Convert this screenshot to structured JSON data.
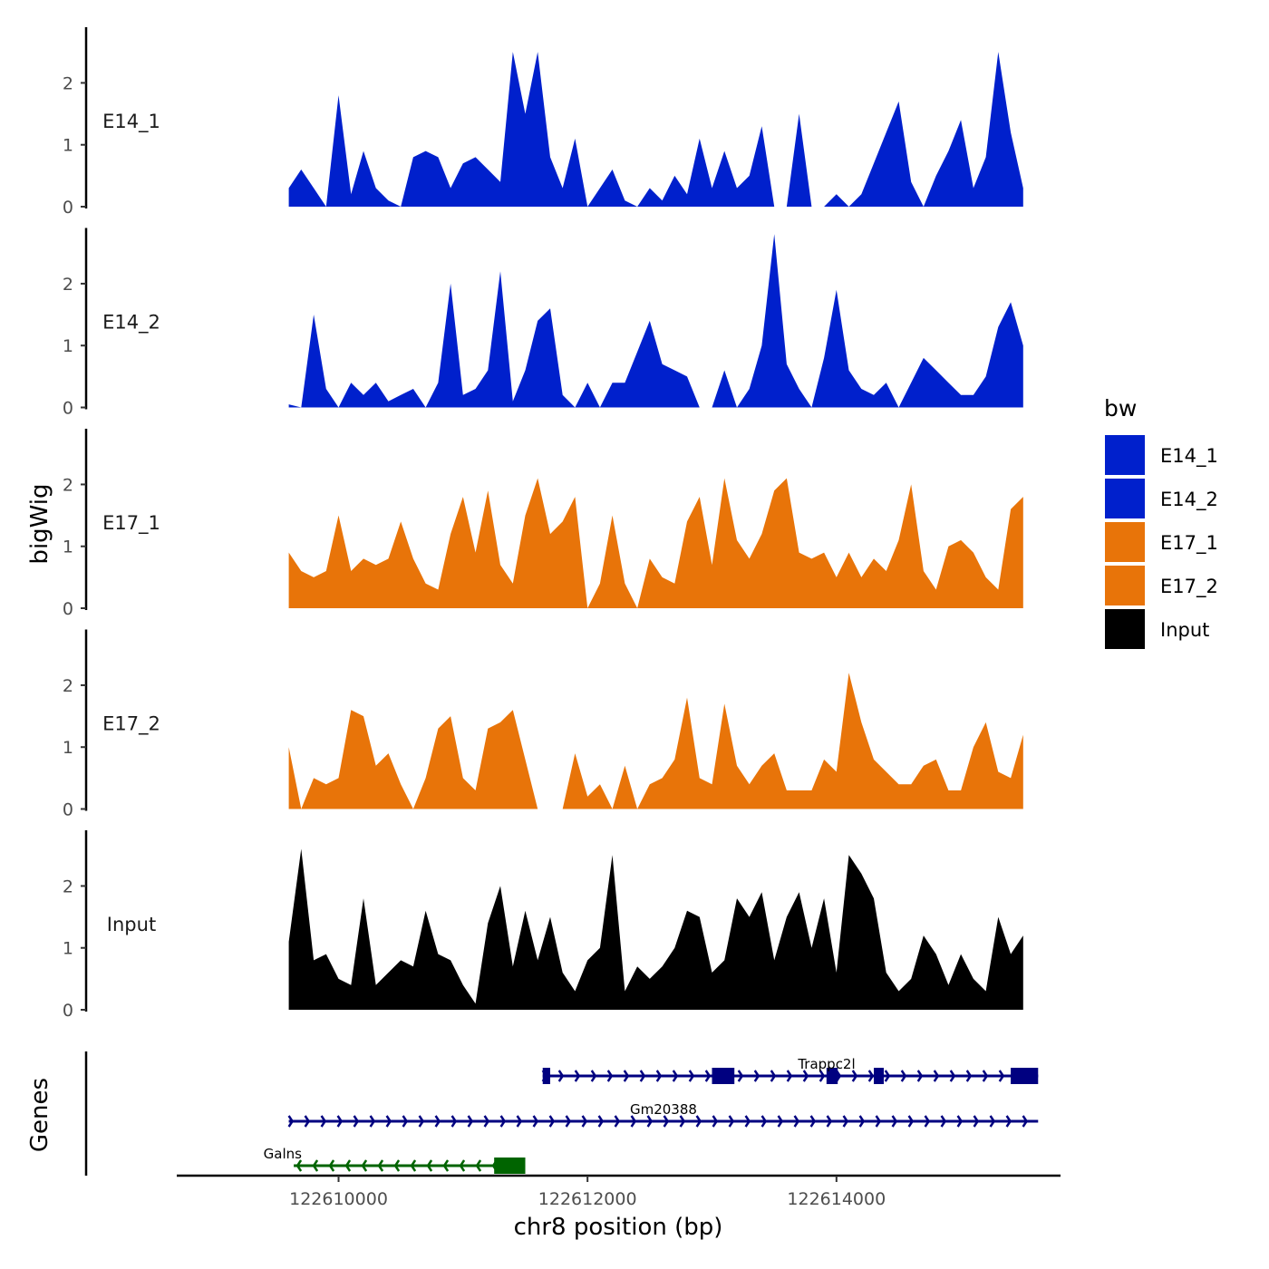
{
  "chart_data": {
    "type": "area",
    "title": "",
    "xlabel": "chr8 position (bp)",
    "ylabel": "bigWig",
    "genes_label": "Genes",
    "xlim": [
      122608700,
      122615800
    ],
    "ylim": [
      0,
      2.9
    ],
    "x_ticks": [
      122610000,
      122612000,
      122614000
    ],
    "x_tick_labels": [
      "122610000",
      "122612000",
      "122614000"
    ],
    "y_ticks": [
      0,
      1,
      2
    ],
    "y_tick_labels": [
      "0",
      "1",
      "2"
    ],
    "legend": {
      "title": "bw",
      "position": "right",
      "entries": [
        {
          "label": "E14_1",
          "color": "#0020cc"
        },
        {
          "label": "E14_2",
          "color": "#0020cc"
        },
        {
          "label": "E17_1",
          "color": "#e87409"
        },
        {
          "label": "E17_2",
          "color": "#e87409"
        },
        {
          "label": "Input",
          "color": "#000000"
        }
      ]
    },
    "x": [
      122609600,
      122609700,
      122609800,
      122609900,
      122610000,
      122610100,
      122610200,
      122610300,
      122610400,
      122610500,
      122610600,
      122610700,
      122610800,
      122610900,
      122611000,
      122611100,
      122611200,
      122611300,
      122611400,
      122611500,
      122611600,
      122611700,
      122611800,
      122611900,
      122612000,
      122612100,
      122612200,
      122612300,
      122612400,
      122612500,
      122612600,
      122612700,
      122612800,
      122612900,
      122613000,
      122613100,
      122613200,
      122613300,
      122613400,
      122613500,
      122613600,
      122613700,
      122613800,
      122613900,
      122614000,
      122614100,
      122614200,
      122614300,
      122614400,
      122614500,
      122614600,
      122614700,
      122614800,
      122614900,
      122615000,
      122615100,
      122615200,
      122615300,
      122615400,
      122615500
    ],
    "series": [
      {
        "name": "E14_1",
        "color": "#0020cc",
        "values": [
          0.3,
          0.6,
          0.3,
          0,
          1.8,
          0.2,
          0.9,
          0.3,
          0.1,
          0,
          0.8,
          0.9,
          0.8,
          0.3,
          0.7,
          0.8,
          0.6,
          0.4,
          2.5,
          1.5,
          2.5,
          0.8,
          0.3,
          1.1,
          0,
          0.3,
          0.6,
          0.1,
          0,
          0.3,
          0.1,
          0.5,
          0.2,
          1.1,
          0.3,
          0.9,
          0.3,
          0.5,
          1.3,
          0,
          0,
          1.5,
          0,
          0,
          0.2,
          0,
          0.2,
          0.7,
          1.2,
          1.7,
          0.4,
          0,
          0.5,
          0.9,
          1.4,
          0.3,
          0.8,
          2.5,
          1.2,
          0.3
        ]
      },
      {
        "name": "E14_2",
        "color": "#0020cc",
        "values": [
          0.05,
          0,
          1.5,
          0.3,
          0,
          0.4,
          0.2,
          0.4,
          0.1,
          0.2,
          0.3,
          0,
          0.4,
          2.0,
          0.2,
          0.3,
          0.6,
          2.2,
          0.1,
          0.6,
          1.4,
          1.6,
          0.2,
          0,
          0.4,
          0,
          0.4,
          0.4,
          0.9,
          1.4,
          0.7,
          0.6,
          0.5,
          0,
          0,
          0.6,
          0,
          0.3,
          1.0,
          2.8,
          0.7,
          0.3,
          0,
          0.8,
          1.9,
          0.6,
          0.3,
          0.2,
          0.4,
          0,
          0.4,
          0.8,
          0.6,
          0.4,
          0.2,
          0.2,
          0.5,
          1.3,
          1.7,
          1.0
        ]
      },
      {
        "name": "E17_1",
        "color": "#e87409",
        "values": [
          0.9,
          0.6,
          0.5,
          0.6,
          1.5,
          0.6,
          0.8,
          0.7,
          0.8,
          1.4,
          0.8,
          0.4,
          0.3,
          1.2,
          1.8,
          0.9,
          1.9,
          0.7,
          0.4,
          1.5,
          2.1,
          1.2,
          1.4,
          1.8,
          0,
          0.4,
          1.5,
          0.4,
          0,
          0.8,
          0.5,
          0.4,
          1.4,
          1.8,
          0.7,
          2.1,
          1.1,
          0.8,
          1.2,
          1.9,
          2.1,
          0.9,
          0.8,
          0.9,
          0.5,
          0.9,
          0.5,
          0.8,
          0.6,
          1.1,
          2.0,
          0.6,
          0.3,
          1.0,
          1.1,
          0.9,
          0.5,
          0.3,
          1.6,
          1.8
        ]
      },
      {
        "name": "E17_2",
        "color": "#e87409",
        "values": [
          1.0,
          0,
          0.5,
          0.4,
          0.5,
          1.6,
          1.5,
          0.7,
          0.9,
          0.4,
          0,
          0.5,
          1.3,
          1.5,
          0.5,
          0.3,
          1.3,
          1.4,
          1.6,
          0.8,
          0,
          0,
          0,
          0.9,
          0.2,
          0.4,
          0,
          0.7,
          0,
          0.4,
          0.5,
          0.8,
          1.8,
          0.5,
          0.4,
          1.7,
          0.7,
          0.4,
          0.7,
          0.9,
          0.3,
          0.3,
          0.3,
          0.8,
          0.6,
          2.2,
          1.4,
          0.8,
          0.6,
          0.4,
          0.4,
          0.7,
          0.8,
          0.3,
          0.3,
          1.0,
          1.4,
          0.6,
          0.5,
          1.2
        ]
      },
      {
        "name": "Input",
        "color": "#000000",
        "values": [
          1.1,
          2.6,
          0.8,
          0.9,
          0.5,
          0.4,
          1.8,
          0.4,
          0.6,
          0.8,
          0.7,
          1.6,
          0.9,
          0.8,
          0.4,
          0.1,
          1.4,
          2.0,
          0.7,
          1.6,
          0.8,
          1.5,
          0.6,
          0.3,
          0.8,
          1.0,
          2.5,
          0.3,
          0.7,
          0.5,
          0.7,
          1.0,
          1.6,
          1.5,
          0.6,
          0.8,
          1.8,
          1.5,
          1.9,
          0.8,
          1.5,
          1.9,
          1.0,
          1.8,
          0.6,
          2.5,
          2.2,
          1.8,
          0.6,
          0.3,
          0.5,
          1.2,
          0.9,
          0.4,
          0.9,
          0.5,
          0.3,
          1.5,
          0.9,
          1.2
        ]
      }
    ],
    "genes": [
      {
        "name": "Trappc2l",
        "start": 122611640,
        "end": 122615620,
        "strand": "+",
        "color": "#000080",
        "exons": [
          [
            122611640,
            122611700
          ],
          [
            122613000,
            122613180
          ],
          [
            122613920,
            122614010
          ],
          [
            122614300,
            122614380
          ],
          [
            122615400,
            122615620
          ]
        ]
      },
      {
        "name": "Gm20388",
        "start": 122609600,
        "end": 122615620,
        "strand": "+",
        "color": "#000080",
        "exons": []
      },
      {
        "name": "Galns",
        "start": 122609640,
        "end": 122611500,
        "strand": "-",
        "color": "#006400",
        "exons": [
          [
            122611250,
            122611500
          ]
        ]
      }
    ]
  }
}
